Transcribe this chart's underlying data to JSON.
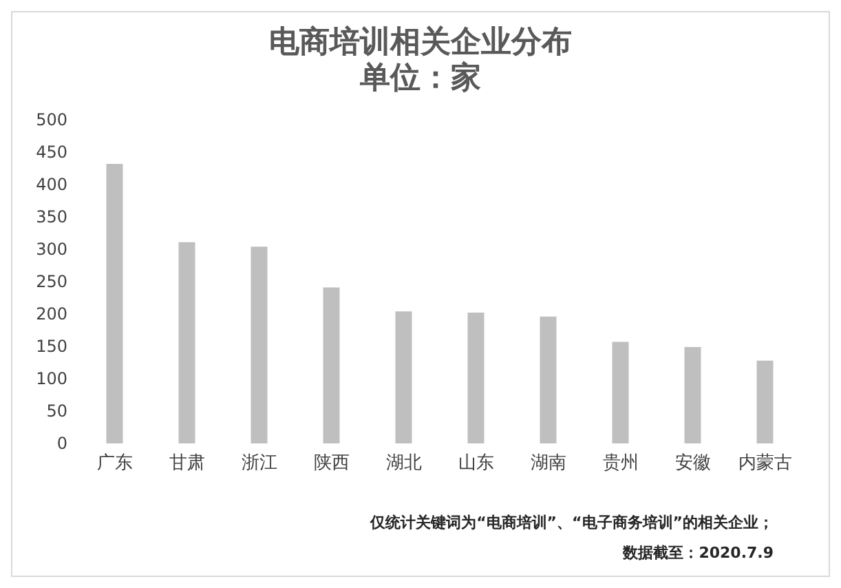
{
  "chart_data": {
    "type": "bar",
    "title": "电商培训相关企业分布",
    "subtitle": "单位：家",
    "categories": [
      "广东",
      "甘肃",
      "浙江",
      "陕西",
      "湖北",
      "山东",
      "湖南",
      "贵州",
      "安徽",
      "内蒙古"
    ],
    "values": [
      432,
      311,
      304,
      241,
      204,
      202,
      196,
      157,
      149,
      128
    ],
    "color": "#bfbfbf",
    "ylim": [
      0,
      500
    ],
    "yticks": [
      0,
      50,
      100,
      150,
      200,
      250,
      300,
      350,
      400,
      450,
      500
    ],
    "grid": false,
    "annotations": [
      "仅统计关键词为“电商培训”、“电子商务培训”的相关企业；",
      "数据截至：2020.7.9"
    ]
  }
}
